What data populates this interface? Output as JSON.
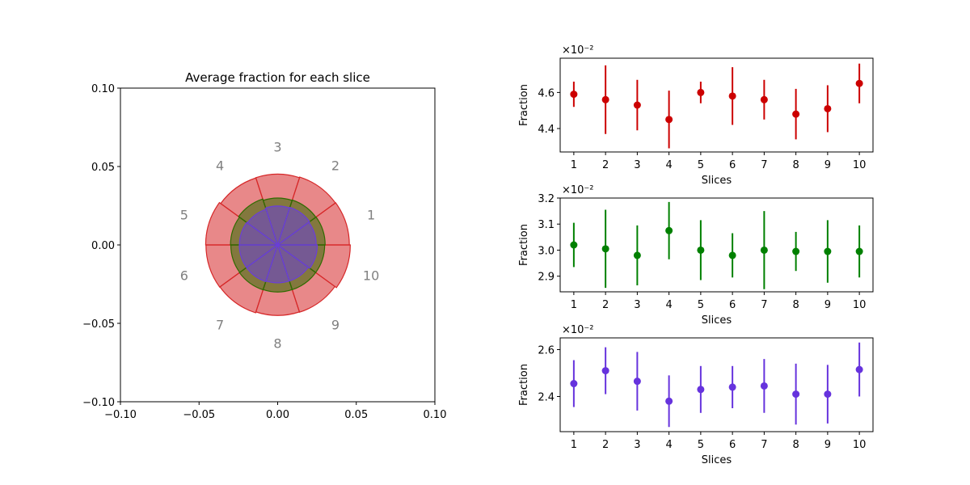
{
  "chart_data": [
    {
      "type": "polar-slices",
      "title": "Average fraction for each slice",
      "xlim": [
        -0.1,
        0.1
      ],
      "ylim": [
        -0.1,
        0.1
      ],
      "xticks": [
        "−0.10",
        "−0.05",
        "0.00",
        "0.05",
        "0.10"
      ],
      "yticks": [
        "−0.10",
        "−0.05",
        "0.00",
        "0.05",
        "0.10"
      ],
      "slice_labels": [
        "1",
        "2",
        "3",
        "4",
        "5",
        "6",
        "7",
        "8",
        "9",
        "10"
      ],
      "layers": [
        {
          "color": "#d62728",
          "radii": [
            0.0456,
            0.0454,
            0.045,
            0.0448,
            0.0458,
            0.0456,
            0.0454,
            0.0448,
            0.045,
            0.0462
          ]
        },
        {
          "color": "#2f6b00",
          "radii": [
            0.0302,
            0.03,
            0.0298,
            0.0307,
            0.03,
            0.0298,
            0.03,
            0.0299,
            0.0299,
            0.0299
          ]
        },
        {
          "color": "#6a3fd8",
          "radii": [
            0.0245,
            0.0251,
            0.0247,
            0.0238,
            0.0243,
            0.0244,
            0.0245,
            0.0241,
            0.0241,
            0.0252
          ]
        }
      ]
    },
    {
      "type": "scatter",
      "color": "#cc0000",
      "xlabel": "Slices",
      "ylabel": "Fraction",
      "scale_label": "×10⁻²",
      "x": [
        1,
        2,
        3,
        4,
        5,
        6,
        7,
        8,
        9,
        10
      ],
      "y": [
        4.59,
        4.56,
        4.53,
        4.45,
        4.6,
        4.58,
        4.56,
        4.48,
        4.51,
        4.65
      ],
      "err": [
        0.07,
        0.19,
        0.14,
        0.16,
        0.06,
        0.16,
        0.11,
        0.14,
        0.13,
        0.11
      ],
      "ylim": [
        4.27,
        4.79
      ],
      "yticks": [
        4.4,
        4.6
      ]
    },
    {
      "type": "scatter",
      "color": "#008000",
      "xlabel": "Slices",
      "ylabel": "Fraction",
      "scale_label": "×10⁻²",
      "x": [
        1,
        2,
        3,
        4,
        5,
        6,
        7,
        8,
        9,
        10
      ],
      "y": [
        3.02,
        3.005,
        2.98,
        3.075,
        3.0,
        2.98,
        3.0,
        2.995,
        2.995,
        2.995
      ],
      "err": [
        0.085,
        0.15,
        0.115,
        0.11,
        0.115,
        0.085,
        0.15,
        0.075,
        0.12,
        0.1
      ],
      "ylim": [
        2.84,
        3.2
      ],
      "yticks": [
        2.9,
        3.0,
        3.1,
        3.2
      ]
    },
    {
      "type": "scatter",
      "color": "#6633dd",
      "xlabel": "Slices",
      "ylabel": "Fraction",
      "scale_label": "×10⁻²",
      "x": [
        1,
        2,
        3,
        4,
        5,
        6,
        7,
        8,
        9,
        10
      ],
      "y": [
        2.455,
        2.51,
        2.465,
        2.38,
        2.43,
        2.44,
        2.445,
        2.41,
        2.41,
        2.515
      ],
      "err": [
        0.1,
        0.1,
        0.125,
        0.11,
        0.1,
        0.09,
        0.115,
        0.13,
        0.125,
        0.115
      ],
      "ylim": [
        2.25,
        2.65
      ],
      "yticks": [
        2.4,
        2.6
      ]
    }
  ]
}
